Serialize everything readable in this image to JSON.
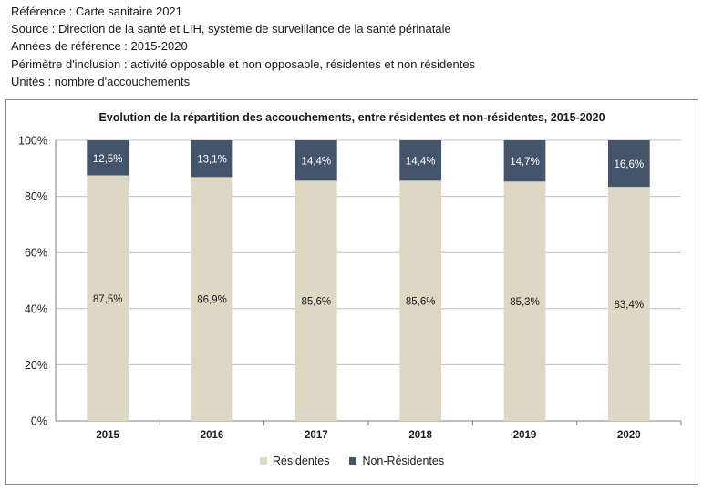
{
  "meta": {
    "reference": "Référence : Carte sanitaire 2021",
    "source": "Source : Direction de la santé et LIH, système de surveillance de la santé périnatale",
    "years": "Années de référence : 2015-2020",
    "scope": "Périmètre d'inclusion : activité opposable et non opposable, résidentes et non résidentes",
    "units": "Unités : nombre d'accouchements"
  },
  "colors": {
    "residentes": "#dcd8c3",
    "non_residentes": "#44546a",
    "grid": "#bfbfbf",
    "axis": "#7f7f7f"
  },
  "chart_data": {
    "type": "bar",
    "stacked": true,
    "percent": true,
    "title": "Evolution de la répartition des accouchements, entre résidentes et non-résidentes, 2015-2020",
    "xlabel": "",
    "ylabel": "",
    "categories": [
      "2015",
      "2016",
      "2017",
      "2018",
      "2019",
      "2020"
    ],
    "ylim": [
      0,
      100
    ],
    "yticks": [
      "0%",
      "20%",
      "40%",
      "60%",
      "80%",
      "100%"
    ],
    "grid": true,
    "legend_position": "bottom",
    "series": [
      {
        "name": "Résidentes",
        "values": [
          87.5,
          86.9,
          85.6,
          85.6,
          85.3,
          83.4
        ],
        "labels": [
          "87,5%",
          "86,9%",
          "85,6%",
          "85,6%",
          "85,3%",
          "83,4%"
        ]
      },
      {
        "name": "Non-Résidentes",
        "values": [
          12.5,
          13.1,
          14.4,
          14.4,
          14.7,
          16.6
        ],
        "labels": [
          "12,5%",
          "13,1%",
          "14,4%",
          "14,4%",
          "14,7%",
          "16,6%"
        ]
      }
    ]
  }
}
